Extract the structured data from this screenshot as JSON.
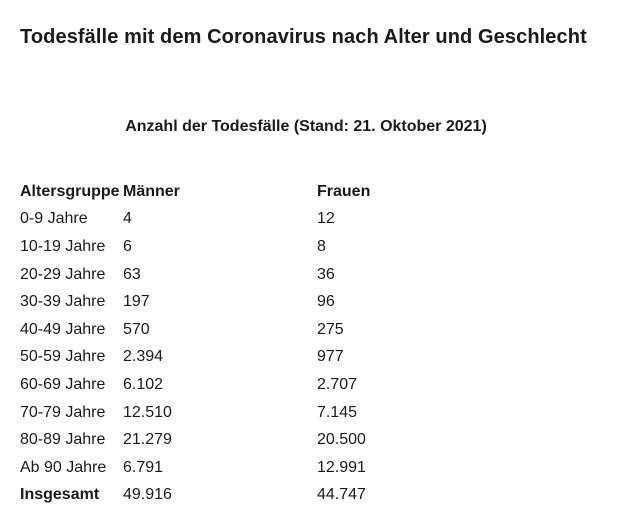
{
  "title": "Todesfälle mit dem Coronavirus nach Alter und Geschlecht",
  "subtitle": "Anzahl der Todesfälle (Stand: 21. Oktober 2021)",
  "table": {
    "headers": [
      "Altersgruppe",
      "Männer",
      "Frauen"
    ],
    "rows": [
      [
        "0-9 Jahre",
        "4",
        "12"
      ],
      [
        "10-19 Jahre",
        "6",
        "8"
      ],
      [
        "20-29 Jahre",
        "63",
        "36"
      ],
      [
        "30-39 Jahre",
        "197",
        "96"
      ],
      [
        "40-49 Jahre",
        "570",
        "275"
      ],
      [
        "50-59 Jahre",
        "2.394",
        "977"
      ],
      [
        "60-69 Jahre",
        "6.102",
        "2.707"
      ],
      [
        "70-79 Jahre",
        "12.510",
        "7.145"
      ],
      [
        "80-89 Jahre",
        "21.279",
        "20.500"
      ],
      [
        "Ab 90 Jahre",
        "6.791",
        "12.991"
      ]
    ],
    "total": [
      "Insgesamt",
      "49.916",
      "44.747"
    ]
  }
}
